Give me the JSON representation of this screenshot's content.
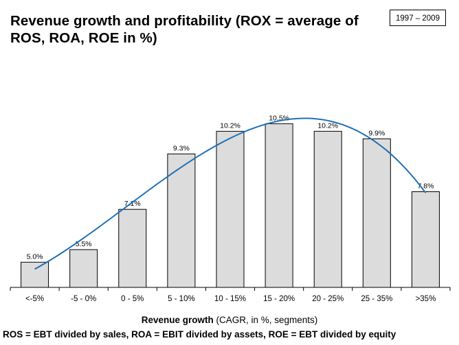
{
  "title": "Revenue growth and profitability  (ROX = average of ROS, ROA, ROE in %)",
  "period": "1997 – 2009",
  "footnote": "ROS = EBT divided by  sales, ROA = EBIT divided by assets, ROE = EBT divided by  equity",
  "chart_data": {
    "type": "bar",
    "categories": [
      "<-5%",
      "-5 - 0%",
      "0 - 5%",
      "5 - 10%",
      "10 - 15%",
      "15 - 20%",
      "20 - 25%",
      "25 - 35%",
      ">35%"
    ],
    "values": [
      5.0,
      5.5,
      7.1,
      9.3,
      10.2,
      10.5,
      10.2,
      9.9,
      7.8
    ],
    "data_labels": [
      "5.0%",
      "5.5%",
      "7.1%",
      "9.3%",
      "10.2%",
      "10.5%",
      "10.2%",
      "9.9%",
      "7.8%"
    ],
    "xlabel_bold": "Revenue growth",
    "xlabel_rest": " (CAGR, in %, segments)",
    "ylabel": "",
    "ylim": [
      4,
      11.6
    ],
    "grid": false,
    "trendline": "polynomial",
    "colors": {
      "bar_fill": "#dcdcdc",
      "bar_stroke": "#000000",
      "trendline": "#1f6fb5"
    }
  }
}
